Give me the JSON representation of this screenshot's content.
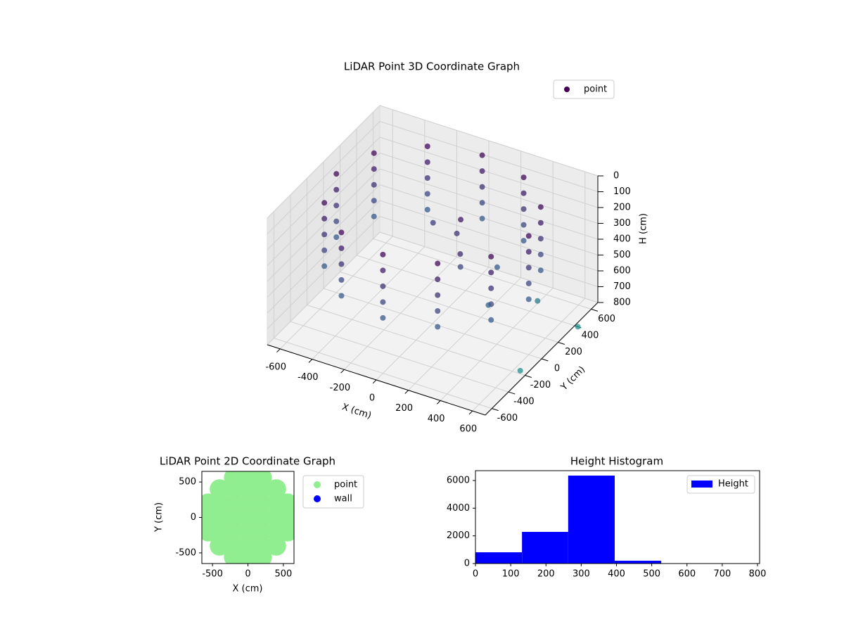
{
  "chart_data": [
    {
      "type": "scatter3d",
      "title": "LiDAR Point 3D Coordinate Graph",
      "x_label": "X (cm)",
      "y_label": "Y (cm)",
      "z_label": "H (cm)",
      "xlim": [
        -680,
        680
      ],
      "ylim": [
        -680,
        680
      ],
      "zlim": [
        0,
        800
      ],
      "z_inverted": true,
      "xticks": [
        -600,
        -400,
        -200,
        0,
        200,
        400,
        600
      ],
      "yticks": [
        -600,
        -400,
        -200,
        0,
        200,
        400,
        600
      ],
      "zticks": [
        0,
        100,
        200,
        300,
        400,
        500,
        600,
        700,
        800
      ],
      "colormap": [
        "#440154",
        "#3b528b",
        "#21918c"
      ],
      "grid": true,
      "legend": "upper right",
      "series": [
        {
          "name": "point",
          "color": "#440154",
          "x": [
            600,
            520,
            300,
            0,
            -300,
            -520,
            -600,
            -520,
            -300,
            0,
            300,
            520,
            600,
            520,
            300,
            0,
            -300,
            -520,
            -600,
            -520,
            -300,
            0,
            300,
            520,
            600,
            520,
            300,
            0,
            -300,
            -520,
            -600,
            -520,
            -300,
            0,
            300,
            520,
            600,
            520,
            300,
            0,
            -300,
            -520,
            -600,
            -520,
            -300,
            0,
            300,
            520,
            600,
            520,
            300,
            0,
            -300,
            -520,
            -600,
            -520,
            -300,
            0,
            300,
            520,
            100,
            200,
            300,
            400,
            500,
            650,
            700,
            -100,
            150,
            250
          ],
          "y": [
            0,
            300,
            520,
            600,
            520,
            300,
            0,
            -300,
            -520,
            -600,
            -520,
            -300,
            0,
            300,
            520,
            600,
            520,
            300,
            0,
            -300,
            -520,
            -600,
            -520,
            -300,
            0,
            300,
            520,
            600,
            520,
            300,
            0,
            -300,
            -520,
            -600,
            -520,
            -300,
            0,
            300,
            520,
            600,
            520,
            300,
            0,
            -300,
            -520,
            -600,
            -520,
            -300,
            0,
            300,
            520,
            600,
            520,
            300,
            0,
            -300,
            -520,
            -600,
            -520,
            -300,
            100,
            -50,
            200,
            -100,
            300,
            -200,
            400,
            200,
            50,
            -150
          ],
          "z": [
            50,
            50,
            50,
            50,
            50,
            50,
            50,
            50,
            50,
            50,
            50,
            50,
            150,
            150,
            150,
            150,
            150,
            150,
            150,
            150,
            150,
            150,
            150,
            150,
            250,
            250,
            250,
            250,
            250,
            250,
            250,
            250,
            250,
            250,
            250,
            250,
            350,
            350,
            350,
            350,
            350,
            350,
            350,
            350,
            350,
            350,
            350,
            350,
            450,
            450,
            450,
            450,
            450,
            450,
            450,
            450,
            450,
            450,
            450,
            450,
            250,
            350,
            450,
            500,
            650,
            780,
            800,
            300,
            120,
            200
          ]
        }
      ]
    },
    {
      "type": "scatter",
      "title": "LiDAR Point 2D Coordinate Graph",
      "x_label": "X (cm)",
      "y_label": "Y (cm)",
      "xlim": [
        -650,
        650
      ],
      "ylim": [
        -650,
        650
      ],
      "xticks": [
        -500,
        0,
        500
      ],
      "yticks": [
        -500,
        0,
        500
      ],
      "legend": "outside right",
      "series": [
        {
          "name": "point",
          "color": "#90ee90",
          "x": [
            -600,
            -400,
            -200,
            0,
            200,
            400,
            600,
            -400,
            -200,
            0,
            200,
            400,
            -400,
            -200,
            0,
            200,
            400,
            -400,
            -200,
            0,
            200,
            400,
            -400,
            -200,
            0,
            200,
            400,
            0,
            0,
            -560,
            -560,
            560,
            560,
            200,
            -200,
            200,
            -200
          ],
          "y": [
            0,
            0,
            0,
            0,
            0,
            0,
            0,
            200,
            200,
            200,
            200,
            200,
            -200,
            -200,
            -200,
            -200,
            -200,
            400,
            400,
            400,
            400,
            400,
            -400,
            -400,
            -400,
            -400,
            -400,
            600,
            -600,
            200,
            -200,
            200,
            -200,
            560,
            560,
            -560,
            -560
          ]
        },
        {
          "name": "wall",
          "color": "#0000ff",
          "x": [],
          "y": []
        }
      ]
    },
    {
      "type": "histogram",
      "title": "Height Histogram",
      "xlim": [
        0,
        806
      ],
      "ylim": [
        0,
        6711
      ],
      "xticks": [
        0,
        100,
        200,
        300,
        400,
        500,
        600,
        700,
        800
      ],
      "yticks": [
        0,
        2000,
        4000,
        6000
      ],
      "legend": "upper right",
      "series": [
        {
          "name": "Height",
          "color": "#0000ff",
          "bins": [
            0,
            132,
            263,
            395,
            527,
            658,
            790
          ],
          "counts": [
            813,
            2288,
            6355,
            203,
            15,
            8
          ]
        }
      ]
    }
  ]
}
